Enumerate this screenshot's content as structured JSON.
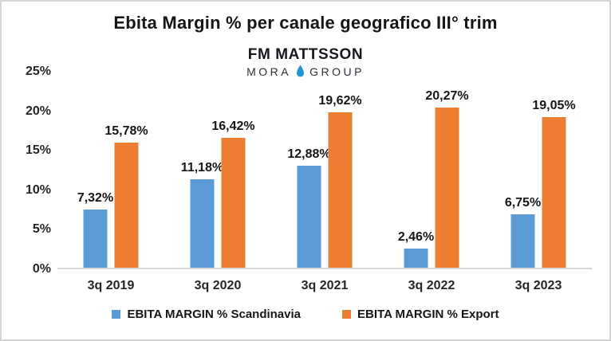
{
  "title": "Ebita Margin % per canale geografico III° trim",
  "logo": {
    "line1": "FM MATTSSON",
    "word_left": "MORA",
    "word_right": "GROUP",
    "drop_icon": "water-drop-icon",
    "drop_color": "#2495d3"
  },
  "chart_data": {
    "type": "bar",
    "title": "Ebita Margin % per canale geografico III° trim",
    "categories": [
      "3q 2019",
      "3q 2020",
      "3q 2021",
      "3q 2022",
      "3q 2023"
    ],
    "series": [
      {
        "name": "EBITA MARGIN % Scandinavia",
        "color": "#5B9BD5",
        "values": [
          7.32,
          11.18,
          12.88,
          2.46,
          6.75
        ],
        "labels": [
          "7,32%",
          "11,18%",
          "12,88%",
          "2,46%",
          "6,75%"
        ]
      },
      {
        "name": "EBITA MARGIN % Export",
        "color": "#ED7D31",
        "values": [
          15.78,
          16.42,
          19.62,
          20.27,
          19.05
        ],
        "labels": [
          "15,78%",
          "16,42%",
          "19,62%",
          "20,27%",
          "19,05%"
        ]
      }
    ],
    "xlabel": "",
    "ylabel": "",
    "ylim": [
      0,
      25
    ],
    "yticks": [
      {
        "value": 0,
        "label": "0%"
      },
      {
        "value": 5,
        "label": "5%"
      },
      {
        "value": 10,
        "label": "10%"
      },
      {
        "value": 15,
        "label": "15%"
      },
      {
        "value": 20,
        "label": "20%"
      },
      {
        "value": 25,
        "label": "25%"
      }
    ],
    "grid": false,
    "legend_position": "bottom",
    "baseline_color": "#d9d9d9",
    "frame_color": "#d4d4d4"
  }
}
